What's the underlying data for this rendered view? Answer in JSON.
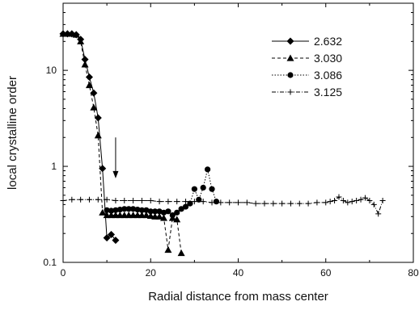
{
  "chart_data": {
    "type": "scatter",
    "xlabel": "Radial distance from mass center",
    "ylabel": "local crystalline order",
    "xlim": [
      0,
      80
    ],
    "ylim": [
      0.1,
      50
    ],
    "yscale": "log",
    "x_ticks": [
      0,
      20,
      40,
      60,
      80
    ],
    "x_tick_labels": [
      "0",
      "20",
      "40",
      "60",
      "80"
    ],
    "y_ticks": [
      0.1,
      1,
      10
    ],
    "y_tick_labels": [
      "0.1",
      "1",
      "10"
    ],
    "legend_position": "top-right",
    "annotations": [
      {
        "type": "arrow",
        "x": 12,
        "y_from": 2.0,
        "y_to": 0.75
      }
    ],
    "series": [
      {
        "name": "2.632",
        "marker": "diamond",
        "line": "solid",
        "x": [
          0,
          1,
          2,
          3,
          4,
          5,
          6,
          7,
          8,
          9,
          10,
          11,
          12
        ],
        "y": [
          24,
          24,
          24,
          23.5,
          21,
          13,
          8.5,
          5.8,
          3.2,
          0.95,
          0.18,
          0.195,
          0.17
        ]
      },
      {
        "name": "3.030",
        "marker": "triangle",
        "line": "dashed",
        "x": [
          0,
          1,
          2,
          3,
          4,
          5,
          6,
          7,
          8,
          9,
          10,
          11,
          12,
          13,
          14,
          15,
          16,
          17,
          18,
          19,
          20,
          21,
          22,
          23,
          24,
          25,
          26,
          27
        ],
        "y": [
          24,
          24,
          24,
          23.5,
          20,
          11.5,
          7,
          4.1,
          2.1,
          0.33,
          0.31,
          0.31,
          0.31,
          0.31,
          0.31,
          0.31,
          0.31,
          0.31,
          0.31,
          0.31,
          0.305,
          0.3,
          0.3,
          0.29,
          0.135,
          0.29,
          0.28,
          0.125
        ]
      },
      {
        "name": "3.086",
        "marker": "circle",
        "line": "dotted",
        "x": [
          10,
          11,
          12,
          13,
          14,
          15,
          16,
          17,
          18,
          19,
          20,
          21,
          22,
          23,
          24,
          25,
          26,
          27,
          28,
          29,
          30,
          31,
          32,
          33,
          34,
          35
        ],
        "y": [
          0.35,
          0.345,
          0.35,
          0.355,
          0.36,
          0.36,
          0.36,
          0.355,
          0.35,
          0.35,
          0.34,
          0.34,
          0.34,
          0.33,
          0.34,
          0.31,
          0.33,
          0.36,
          0.38,
          0.41,
          0.58,
          0.45,
          0.6,
          0.93,
          0.58,
          0.43
        ]
      },
      {
        "name": "3.125",
        "marker": "plus",
        "line": "dashdot",
        "x": [
          0,
          2,
          4,
          6,
          8,
          10,
          12,
          14,
          16,
          18,
          20,
          22,
          24,
          26,
          28,
          30,
          32,
          34,
          36,
          38,
          40,
          42,
          44,
          46,
          48,
          50,
          52,
          54,
          56,
          58,
          60,
          61,
          62,
          63,
          64,
          65,
          66,
          67,
          68,
          69,
          70,
          71,
          72,
          73
        ],
        "y": [
          0.44,
          0.45,
          0.45,
          0.45,
          0.45,
          0.45,
          0.44,
          0.44,
          0.44,
          0.44,
          0.44,
          0.43,
          0.43,
          0.43,
          0.43,
          0.43,
          0.43,
          0.42,
          0.42,
          0.42,
          0.42,
          0.42,
          0.41,
          0.41,
          0.41,
          0.41,
          0.41,
          0.41,
          0.41,
          0.42,
          0.42,
          0.43,
          0.44,
          0.48,
          0.44,
          0.42,
          0.43,
          0.44,
          0.45,
          0.47,
          0.44,
          0.4,
          0.32,
          0.44
        ]
      }
    ]
  }
}
